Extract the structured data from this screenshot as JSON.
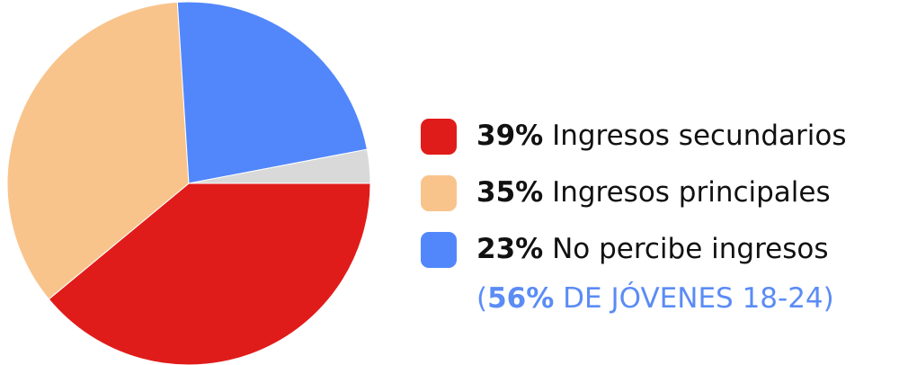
{
  "chart_data": {
    "type": "pie",
    "categories": [
      "Ingresos secundarios",
      "Ingresos principales",
      "No percibe ingresos",
      null
    ],
    "values": [
      39,
      35,
      23,
      3
    ],
    "value_labels": [
      "39%",
      "35%",
      "23%",
      null
    ],
    "colors": [
      "#e01c1a",
      "#f8c48c",
      "#5287fb",
      "#d9d9d9"
    ],
    "annotation": [
      "(",
      "56%",
      " DE JÓVENES 18-24)"
    ],
    "annotation_color": "#5b8cf5"
  }
}
